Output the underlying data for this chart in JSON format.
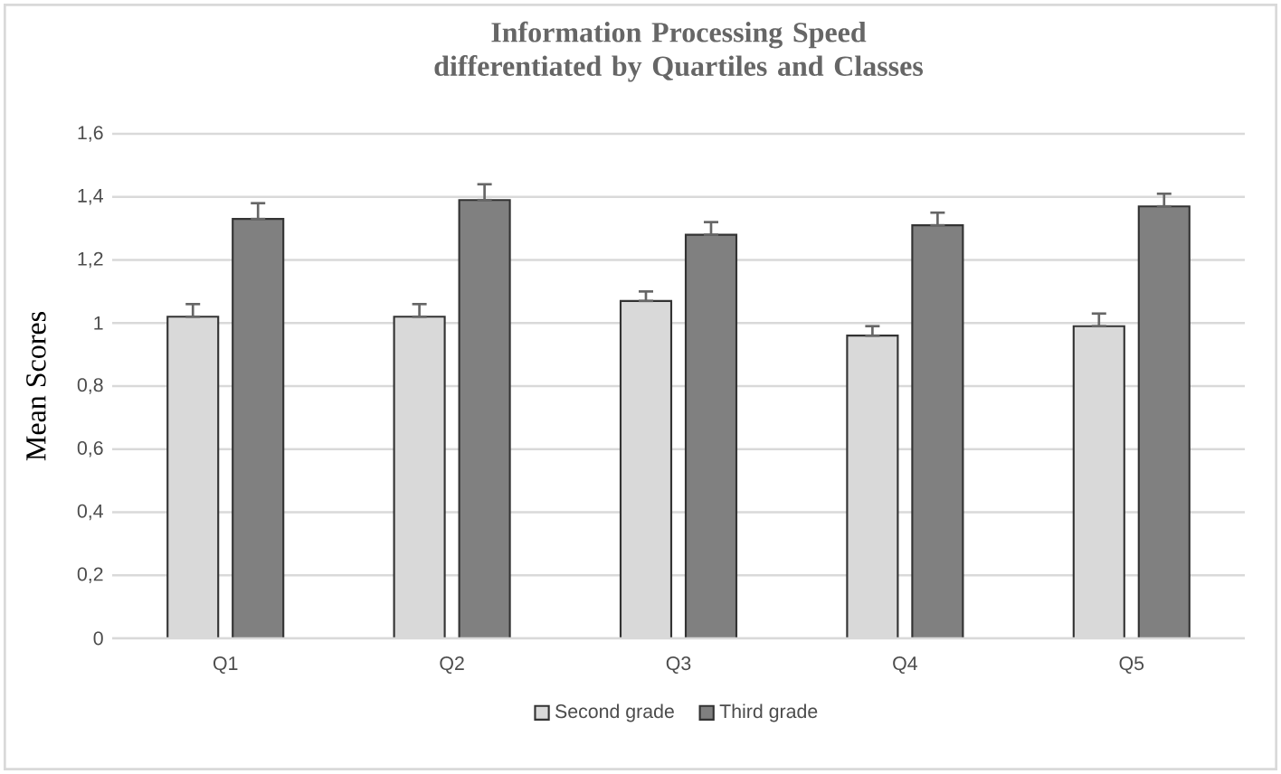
{
  "chart_data": {
    "type": "bar",
    "title": "Information Processing Speed differentiated by Quartiles and Classes",
    "ylabel": "Mean Scores",
    "categories": [
      "Q1",
      "Q2",
      "Q3",
      "Q4",
      "Q5"
    ],
    "series": [
      {
        "name": "Second grade",
        "color": "#d9d9d9",
        "values": [
          1.02,
          1.02,
          1.07,
          0.96,
          0.99
        ],
        "errors": [
          [
            1.02,
            1.06
          ],
          [
            1.02,
            1.06
          ],
          [
            1.07,
            1.1
          ],
          [
            0.96,
            0.99
          ],
          [
            0.99,
            1.03
          ]
        ]
      },
      {
        "name": "Third grade",
        "color": "#808080",
        "values": [
          1.33,
          1.39,
          1.28,
          1.31,
          1.37
        ],
        "errors": [
          [
            1.33,
            1.38
          ],
          [
            1.39,
            1.44
          ],
          [
            1.28,
            1.32
          ],
          [
            1.31,
            1.35
          ],
          [
            1.37,
            1.41
          ]
        ]
      }
    ],
    "ylim": [
      0,
      1.6
    ],
    "yticks": [
      0,
      {
        "value": 0.2,
        "label": "0,2"
      },
      {
        "value": 0.4,
        "label": "0,4"
      },
      {
        "value": 0.6,
        "label": "0,6"
      },
      {
        "value": 0.8,
        "label": "0,8"
      },
      1,
      {
        "value": 1.2,
        "label": "1,2"
      },
      {
        "value": 1.4,
        "label": "1,4"
      },
      {
        "value": 1.6,
        "label": "1,6"
      }
    ],
    "grid": "y",
    "legend": "bottom"
  }
}
